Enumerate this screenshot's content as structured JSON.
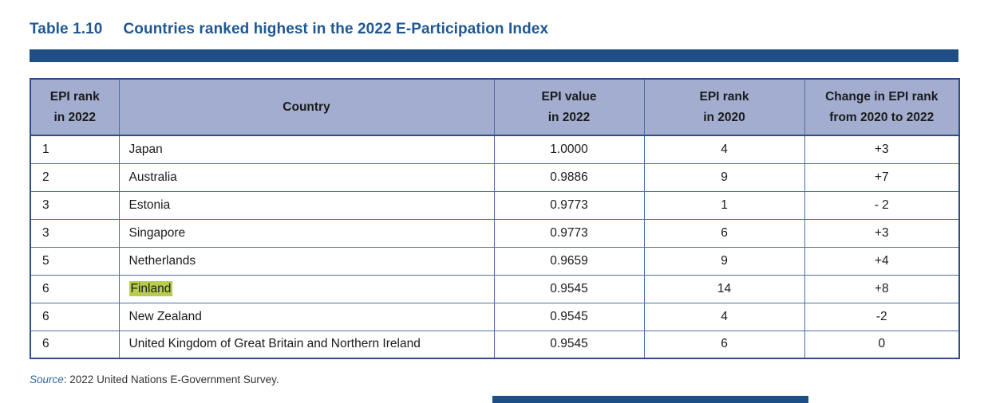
{
  "title": {
    "label": "Table 1.10",
    "text": "Countries ranked highest in the 2022 E-Participation Index"
  },
  "colors": {
    "navy_bar": "#1E4E86",
    "title_text": "#1F5795",
    "header_fill": "#A2ADD0",
    "grid_line": "#4C6FA8",
    "highlight": "#B7CC4D"
  },
  "table": {
    "headers": {
      "rank2022": {
        "line1": "EPI rank",
        "line2": "in 2022"
      },
      "country": {
        "line1": "Country"
      },
      "value2022": {
        "line1": "EPI value",
        "line2": "in 2022"
      },
      "rank2020": {
        "line1": "EPI rank",
        "line2": "in 2020"
      },
      "change": {
        "line1": "Change in EPI rank",
        "line2": "from 2020 to 2022"
      }
    },
    "rows": [
      {
        "rank2022": "1",
        "country": "Japan",
        "value2022": "1.0000",
        "rank2020": "4",
        "change": "+3",
        "highlight": false
      },
      {
        "rank2022": "2",
        "country": "Australia",
        "value2022": "0.9886",
        "rank2020": "9",
        "change": "+7",
        "highlight": false
      },
      {
        "rank2022": "3",
        "country": "Estonia",
        "value2022": "0.9773",
        "rank2020": "1",
        "change": "- 2",
        "highlight": false
      },
      {
        "rank2022": "3",
        "country": "Singapore",
        "value2022": "0.9773",
        "rank2020": "6",
        "change": "+3",
        "highlight": false
      },
      {
        "rank2022": "5",
        "country": "Netherlands",
        "value2022": "0.9659",
        "rank2020": "9",
        "change": "+4",
        "highlight": false
      },
      {
        "rank2022": "6",
        "country": "Finland",
        "value2022": "0.9545",
        "rank2020": "14",
        "change": "+8",
        "highlight": true
      },
      {
        "rank2022": "6",
        "country": "New Zealand",
        "value2022": "0.9545",
        "rank2020": "4",
        "change": "-2",
        "highlight": false
      },
      {
        "rank2022": "6",
        "country": "United Kingdom of Great Britain and Northern Ireland",
        "value2022": "0.9545",
        "rank2020": "6",
        "change": "0",
        "highlight": false
      }
    ]
  },
  "source": {
    "label": "Source",
    "rest": ": 2022 United Nations E-Government Survey."
  }
}
